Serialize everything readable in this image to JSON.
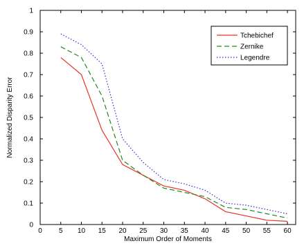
{
  "chart_data": {
    "type": "line",
    "title": "",
    "xlabel": "Maximum Order of Moments",
    "ylabel": "Normalized Disparity Error",
    "xlim": [
      0,
      62
    ],
    "ylim": [
      0,
      1
    ],
    "xticks": [
      0,
      5,
      10,
      15,
      20,
      25,
      30,
      35,
      40,
      45,
      50,
      55,
      60
    ],
    "yticks": [
      0,
      0.1,
      0.2,
      0.3,
      0.4,
      0.5,
      0.6,
      0.7,
      0.8,
      0.9,
      1
    ],
    "xtick_labels": [
      "0",
      "5",
      "10",
      "15",
      "20",
      "25",
      "30",
      "35",
      "40",
      "45",
      "50",
      "55",
      "60"
    ],
    "ytick_labels": [
      "0",
      "0.1",
      "0.2",
      "0.3",
      "0.4",
      "0.5",
      "0.6",
      "0.7",
      "0.8",
      "0.9",
      "1"
    ],
    "grid": false,
    "legend_position": "top-right",
    "x": [
      5,
      10,
      15,
      20,
      25,
      30,
      35,
      40,
      45,
      50,
      55,
      60
    ],
    "series": [
      {
        "name": "Tchebichef",
        "color": "#e8322b",
        "dash": "solid",
        "values": [
          0.78,
          0.7,
          0.44,
          0.28,
          0.23,
          0.18,
          0.16,
          0.12,
          0.06,
          0.04,
          0.02,
          0.015
        ]
      },
      {
        "name": "Zernike",
        "color": "#1d8a1d",
        "dash": "dashed",
        "values": [
          0.83,
          0.78,
          0.6,
          0.3,
          0.23,
          0.17,
          0.15,
          0.13,
          0.08,
          0.07,
          0.05,
          0.03
        ]
      },
      {
        "name": "Legendre",
        "color": "#2b2bd6",
        "dash": "dotted",
        "values": [
          0.89,
          0.84,
          0.75,
          0.4,
          0.29,
          0.21,
          0.19,
          0.16,
          0.1,
          0.09,
          0.07,
          0.05
        ]
      }
    ]
  }
}
